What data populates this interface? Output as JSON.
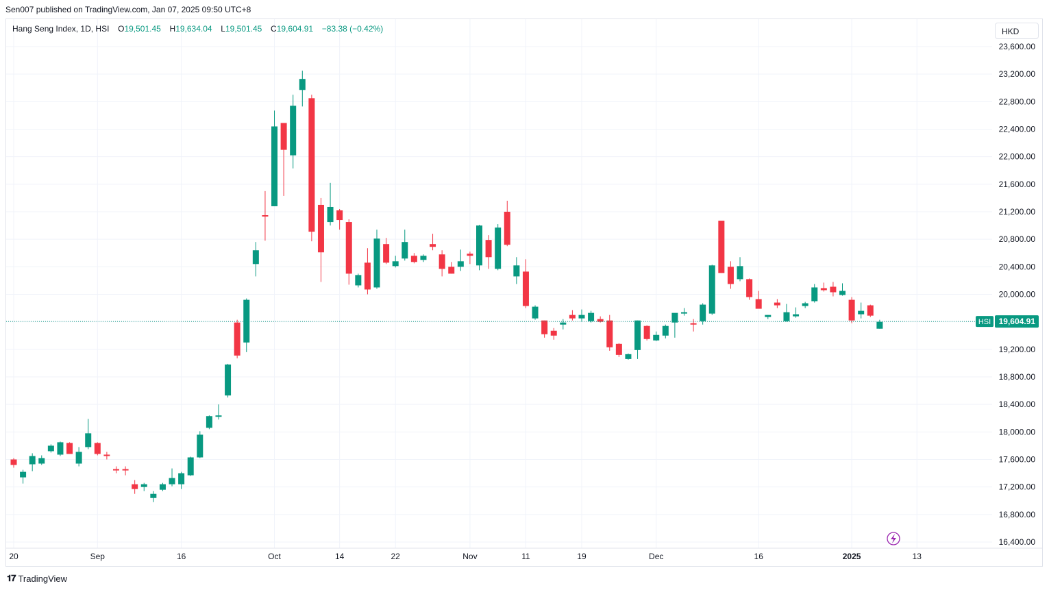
{
  "publisher_line": "Sen007 published on TradingView.com, Jan 07, 2025 09:50 UTC+8",
  "legend": {
    "symbol_line": "Hang Seng Index, 1D, HSI",
    "o_label": "O",
    "o_value": "19,501.45",
    "h_label": "H",
    "h_value": "19,634.04",
    "l_label": "L",
    "l_value": "19,501.45",
    "c_label": "C",
    "c_value": "19,604.91",
    "change": "−83.38 (−0.42%)"
  },
  "currency": "HKD",
  "price_tag": {
    "symbol": "HSI",
    "value": "19,604.91"
  },
  "brand": "TradingView",
  "colors": {
    "up": "#089981",
    "down": "#f23645",
    "grid": "#f0f3fa",
    "axis_text": "#131722",
    "last_line": "#089981"
  },
  "chart_data": {
    "type": "candlestick",
    "y_axis": {
      "min": 16400,
      "max": 23600,
      "step": 400,
      "tick_labels": [
        "23,600.00",
        "23,200.00",
        "22,800.00",
        "22,400.00",
        "22,000.00",
        "21,600.00",
        "21,200.00",
        "20,800.00",
        "20,400.00",
        "20,000.00",
        "19,200.00",
        "18,800.00",
        "18,400.00",
        "18,000.00",
        "17,600.00",
        "17,200.00",
        "16,800.00",
        "16,400.00"
      ]
    },
    "x_axis": {
      "labels": [
        {
          "label": "20",
          "bar": 0
        },
        {
          "label": "Sep",
          "bar": 9
        },
        {
          "label": "16",
          "bar": 18
        },
        {
          "label": "Oct",
          "bar": 28
        },
        {
          "label": "14",
          "bar": 35
        },
        {
          "label": "22",
          "bar": 41
        },
        {
          "label": "Nov",
          "bar": 49
        },
        {
          "label": "11",
          "bar": 55
        },
        {
          "label": "19",
          "bar": 61
        },
        {
          "label": "Dec",
          "bar": 69
        },
        {
          "label": "16",
          "bar": 80
        },
        {
          "label": "2025",
          "bar": 90
        },
        {
          "label": "13",
          "bar": 97
        }
      ]
    },
    "last_price": 19604.91,
    "candles": [
      {
        "o": 17600,
        "h": 17620,
        "l": 17480,
        "c": 17520
      },
      {
        "o": 17340,
        "h": 17450,
        "l": 17250,
        "c": 17420
      },
      {
        "o": 17530,
        "h": 17690,
        "l": 17430,
        "c": 17650
      },
      {
        "o": 17540,
        "h": 17660,
        "l": 17520,
        "c": 17620
      },
      {
        "o": 17720,
        "h": 17820,
        "l": 17700,
        "c": 17800
      },
      {
        "o": 17670,
        "h": 17860,
        "l": 17650,
        "c": 17850
      },
      {
        "o": 17840,
        "h": 17850,
        "l": 17680,
        "c": 17680
      },
      {
        "o": 17540,
        "h": 17780,
        "l": 17500,
        "c": 17710
      },
      {
        "o": 17780,
        "h": 18190,
        "l": 17750,
        "c": 17980
      },
      {
        "o": 17840,
        "h": 17850,
        "l": 17660,
        "c": 17680
      },
      {
        "o": 17670,
        "h": 17710,
        "l": 17600,
        "c": 17660
      },
      {
        "o": 17460,
        "h": 17500,
        "l": 17400,
        "c": 17450
      },
      {
        "o": 17460,
        "h": 17500,
        "l": 17370,
        "c": 17440
      },
      {
        "o": 17240,
        "h": 17300,
        "l": 17100,
        "c": 17170
      },
      {
        "o": 17200,
        "h": 17260,
        "l": 17140,
        "c": 17240
      },
      {
        "o": 17040,
        "h": 17140,
        "l": 16980,
        "c": 17100
      },
      {
        "o": 17160,
        "h": 17260,
        "l": 17140,
        "c": 17240
      },
      {
        "o": 17240,
        "h": 17470,
        "l": 17210,
        "c": 17330
      },
      {
        "o": 17240,
        "h": 17420,
        "l": 17170,
        "c": 17400
      },
      {
        "o": 17370,
        "h": 17640,
        "l": 17360,
        "c": 17630
      },
      {
        "o": 17630,
        "h": 18010,
        "l": 17620,
        "c": 17960
      },
      {
        "o": 18060,
        "h": 18240,
        "l": 18040,
        "c": 18230
      },
      {
        "o": 18230,
        "h": 18400,
        "l": 18180,
        "c": 18240
      },
      {
        "o": 18530,
        "h": 18990,
        "l": 18500,
        "c": 18980
      },
      {
        "o": 19590,
        "h": 19630,
        "l": 19070,
        "c": 19110
      },
      {
        "o": 19300,
        "h": 19940,
        "l": 19160,
        "c": 19920
      },
      {
        "o": 20440,
        "h": 20760,
        "l": 20260,
        "c": 20640
      },
      {
        "o": 21150,
        "h": 21500,
        "l": 20780,
        "c": 21140
      },
      {
        "o": 21280,
        "h": 22670,
        "l": 21280,
        "c": 22440
      },
      {
        "o": 22490,
        "h": 22490,
        "l": 21430,
        "c": 22100
      },
      {
        "o": 22020,
        "h": 22900,
        "l": 21830,
        "c": 22740
      },
      {
        "o": 22970,
        "h": 23250,
        "l": 22730,
        "c": 23130
      },
      {
        "o": 22850,
        "h": 22900,
        "l": 20770,
        "c": 20910
      },
      {
        "o": 21300,
        "h": 21400,
        "l": 20180,
        "c": 20610
      },
      {
        "o": 21050,
        "h": 21620,
        "l": 21000,
        "c": 21270
      },
      {
        "o": 21220,
        "h": 21240,
        "l": 20940,
        "c": 21080
      },
      {
        "o": 21050,
        "h": 21090,
        "l": 20140,
        "c": 20300
      },
      {
        "o": 20130,
        "h": 20300,
        "l": 20100,
        "c": 20280
      },
      {
        "o": 20460,
        "h": 20670,
        "l": 20000,
        "c": 20070
      },
      {
        "o": 20100,
        "h": 20940,
        "l": 20080,
        "c": 20810
      },
      {
        "o": 20730,
        "h": 20820,
        "l": 20440,
        "c": 20460
      },
      {
        "o": 20410,
        "h": 20560,
        "l": 20390,
        "c": 20480
      },
      {
        "o": 20520,
        "h": 20940,
        "l": 20490,
        "c": 20760
      },
      {
        "o": 20560,
        "h": 20600,
        "l": 20450,
        "c": 20470
      },
      {
        "o": 20500,
        "h": 20580,
        "l": 20470,
        "c": 20560
      },
      {
        "o": 20730,
        "h": 20880,
        "l": 20640,
        "c": 20690
      },
      {
        "o": 20580,
        "h": 20640,
        "l": 20260,
        "c": 20370
      },
      {
        "o": 20400,
        "h": 20470,
        "l": 20300,
        "c": 20300
      },
      {
        "o": 20400,
        "h": 20650,
        "l": 20340,
        "c": 20480
      },
      {
        "o": 20590,
        "h": 20620,
        "l": 20440,
        "c": 20560
      },
      {
        "o": 20420,
        "h": 21010,
        "l": 20350,
        "c": 21000
      },
      {
        "o": 20790,
        "h": 20860,
        "l": 20370,
        "c": 20540
      },
      {
        "o": 20370,
        "h": 21020,
        "l": 20350,
        "c": 20970
      },
      {
        "o": 21200,
        "h": 21360,
        "l": 20700,
        "c": 20720
      },
      {
        "o": 20260,
        "h": 20540,
        "l": 20150,
        "c": 20420
      },
      {
        "o": 20330,
        "h": 20510,
        "l": 19800,
        "c": 19830
      },
      {
        "o": 19650,
        "h": 19840,
        "l": 19630,
        "c": 19820
      },
      {
        "o": 19620,
        "h": 19620,
        "l": 19370,
        "c": 19420
      },
      {
        "o": 19470,
        "h": 19510,
        "l": 19340,
        "c": 19400
      },
      {
        "o": 19560,
        "h": 19640,
        "l": 19490,
        "c": 19590
      },
      {
        "o": 19700,
        "h": 19770,
        "l": 19620,
        "c": 19650
      },
      {
        "o": 19650,
        "h": 19780,
        "l": 19600,
        "c": 19700
      },
      {
        "o": 19610,
        "h": 19760,
        "l": 19590,
        "c": 19730
      },
      {
        "o": 19640,
        "h": 19680,
        "l": 19590,
        "c": 19600
      },
      {
        "o": 19620,
        "h": 19700,
        "l": 19180,
        "c": 19230
      },
      {
        "o": 19280,
        "h": 19290,
        "l": 19090,
        "c": 19120
      },
      {
        "o": 19060,
        "h": 19140,
        "l": 19050,
        "c": 19130
      },
      {
        "o": 19190,
        "h": 19620,
        "l": 19060,
        "c": 19620
      },
      {
        "o": 19540,
        "h": 19550,
        "l": 19330,
        "c": 19350
      },
      {
        "o": 19330,
        "h": 19460,
        "l": 19320,
        "c": 19410
      },
      {
        "o": 19400,
        "h": 19560,
        "l": 19360,
        "c": 19540
      },
      {
        "o": 19590,
        "h": 19720,
        "l": 19370,
        "c": 19730
      },
      {
        "o": 19720,
        "h": 19800,
        "l": 19690,
        "c": 19740
      },
      {
        "o": 19580,
        "h": 19640,
        "l": 19460,
        "c": 19560
      },
      {
        "o": 19610,
        "h": 19870,
        "l": 19560,
        "c": 19850
      },
      {
        "o": 19720,
        "h": 20430,
        "l": 19700,
        "c": 20420
      },
      {
        "o": 21070,
        "h": 21070,
        "l": 20310,
        "c": 20310
      },
      {
        "o": 20400,
        "h": 20480,
        "l": 20080,
        "c": 20150
      },
      {
        "o": 20220,
        "h": 20540,
        "l": 20190,
        "c": 20410
      },
      {
        "o": 20220,
        "h": 20230,
        "l": 19920,
        "c": 19960
      },
      {
        "o": 19930,
        "h": 20050,
        "l": 19800,
        "c": 19790
      },
      {
        "o": 19670,
        "h": 19700,
        "l": 19640,
        "c": 19700
      },
      {
        "o": 19880,
        "h": 19930,
        "l": 19800,
        "c": 19840
      },
      {
        "o": 19610,
        "h": 19860,
        "l": 19600,
        "c": 19740
      },
      {
        "o": 19680,
        "h": 19810,
        "l": 19660,
        "c": 19710
      },
      {
        "o": 19830,
        "h": 19890,
        "l": 19800,
        "c": 19870
      },
      {
        "o": 19900,
        "h": 20150,
        "l": 19880,
        "c": 20100
      },
      {
        "o": 20090,
        "h": 20170,
        "l": 20040,
        "c": 20060
      },
      {
        "o": 20110,
        "h": 20180,
        "l": 19970,
        "c": 20030
      },
      {
        "o": 19990,
        "h": 20160,
        "l": 19980,
        "c": 20050
      },
      {
        "o": 19920,
        "h": 19960,
        "l": 19580,
        "c": 19620
      },
      {
        "o": 19710,
        "h": 19880,
        "l": 19650,
        "c": 19760
      },
      {
        "o": 19840,
        "h": 19850,
        "l": 19670,
        "c": 19690
      },
      {
        "o": 19500,
        "h": 19630,
        "l": 19500,
        "c": 19600
      }
    ]
  }
}
